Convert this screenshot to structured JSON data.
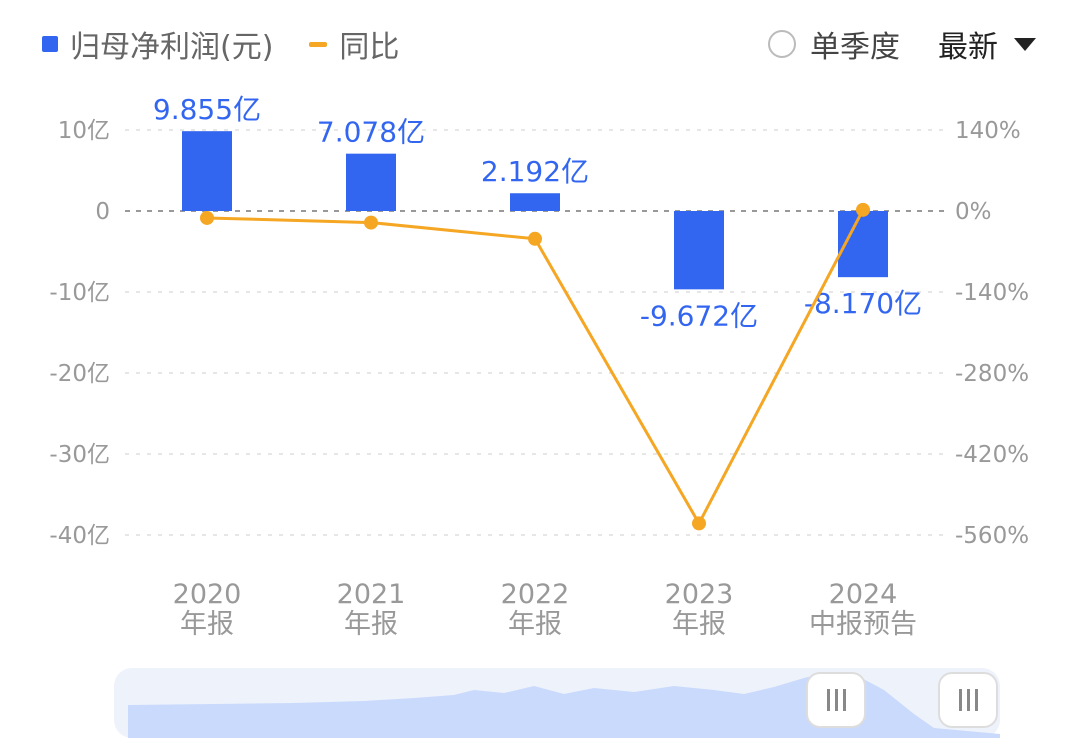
{
  "legend": {
    "bar_series": "归母净利润(元)",
    "line_series": "同比"
  },
  "controls": {
    "season_label": "单季度",
    "latest_label": "最新"
  },
  "colors": {
    "bar": "#3366f0",
    "line": "#f5a623",
    "grid": "#dddddd",
    "zero": "#999999",
    "slider_fill": "#c9dafc"
  },
  "chart_data": {
    "type": "bar",
    "categories": [
      {
        "year": "2020",
        "kind": "年报"
      },
      {
        "year": "2021",
        "kind": "年报"
      },
      {
        "year": "2022",
        "kind": "年报"
      },
      {
        "year": "2023",
        "kind": "年报"
      },
      {
        "year": "2024",
        "kind": "中报预告"
      }
    ],
    "series": [
      {
        "name": "归母净利润(元)",
        "axis": "left",
        "values": [
          9.855,
          7.078,
          2.192,
          -9.672,
          -8.17
        ],
        "labels": [
          "9.855亿",
          "7.078亿",
          "2.192亿",
          "-9.672亿",
          "-8.170亿"
        ]
      },
      {
        "name": "同比",
        "axis": "right",
        "type": "line",
        "values": [
          -12,
          -20,
          -48,
          -540,
          2
        ]
      }
    ],
    "left_axis": {
      "ticks": [
        "10亿",
        "0",
        "-10亿",
        "-20亿",
        "-30亿",
        "-40亿"
      ],
      "range": [
        -40,
        10
      ]
    },
    "right_axis": {
      "ticks": [
        "140%",
        "0%",
        "-140%",
        "-280%",
        "-420%",
        "-560%"
      ],
      "range": [
        -560,
        140
      ]
    },
    "grid": true
  }
}
